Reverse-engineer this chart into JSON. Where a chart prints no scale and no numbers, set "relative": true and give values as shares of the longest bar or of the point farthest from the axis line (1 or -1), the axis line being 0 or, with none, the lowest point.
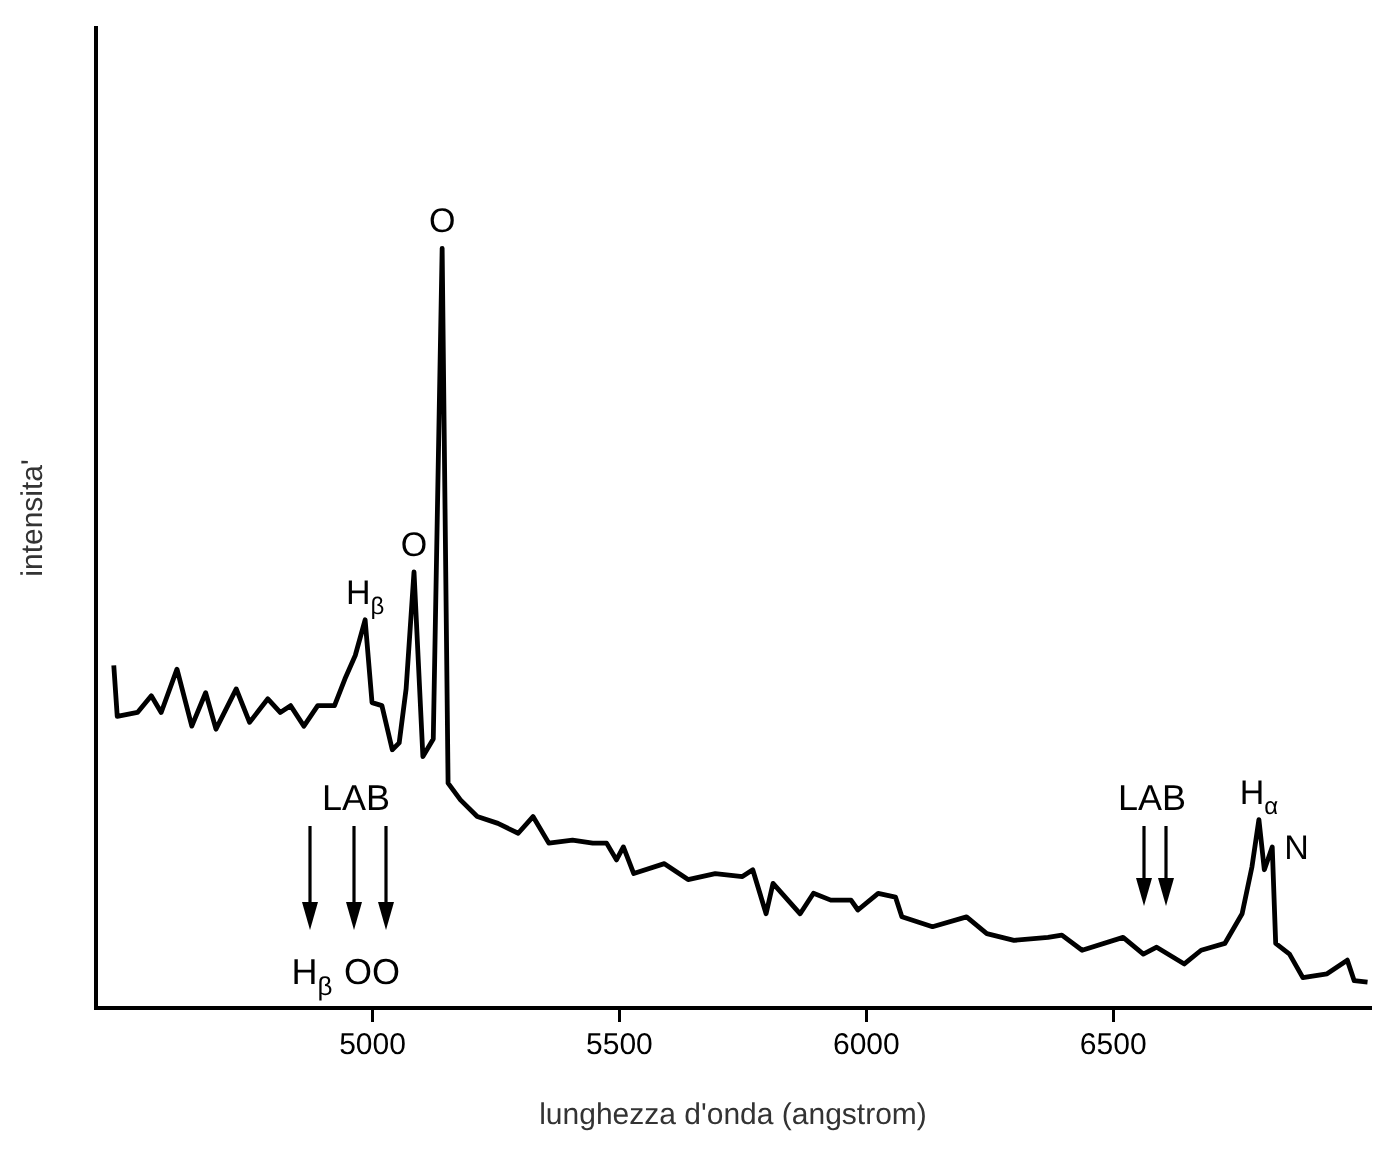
{
  "chart_data": {
    "type": "line",
    "relative": true,
    "xlabel": "lunghezza d'onda (angstrom)",
    "ylabel": "intensita'",
    "xlim": [
      4440,
      7020
    ],
    "xticks": [
      5000,
      5500,
      6000,
      6500
    ],
    "grid": false,
    "legend": false,
    "marker": "none",
    "line_style": "solid",
    "x": [
      4476,
      4483,
      4524,
      4552,
      4572,
      4604,
      4634,
      4662,
      4683,
      4724,
      4751,
      4788,
      4813,
      4834,
      4861,
      4889,
      4923,
      4944,
      4965,
      4985,
      4999,
      5019,
      5040,
      5054,
      5068,
      5084,
      5102,
      5123,
      5141,
      5153,
      5178,
      5212,
      5254,
      5295,
      5325,
      5357,
      5405,
      5446,
      5474,
      5494,
      5508,
      5529,
      5591,
      5639,
      5694,
      5749,
      5770,
      5797,
      5811,
      5866,
      5893,
      5928,
      5969,
      5983,
      6024,
      6059,
      6072,
      6134,
      6203,
      6244,
      6299,
      6368,
      6396,
      6437,
      6520,
      6561,
      6588,
      6644,
      6678,
      6726,
      6761,
      6781,
      6795,
      6806,
      6822,
      6829,
      6857,
      6884,
      6933,
      6974,
      6988,
      7015
    ],
    "series": [
      {
        "color": "#000000",
        "values": [
          0.451,
          0.384,
          0.389,
          0.411,
          0.389,
          0.446,
          0.371,
          0.415,
          0.367,
          0.42,
          0.376,
          0.407,
          0.389,
          0.398,
          0.371,
          0.398,
          0.398,
          0.433,
          0.464,
          0.511,
          0.402,
          0.398,
          0.34,
          0.349,
          0.42,
          0.574,
          0.331,
          0.354,
          1,
          0.296,
          0.274,
          0.252,
          0.243,
          0.23,
          0.252,
          0.217,
          0.221,
          0.217,
          0.217,
          0.195,
          0.212,
          0.177,
          0.19,
          0.169,
          0.177,
          0.173,
          0.182,
          0.124,
          0.164,
          0.124,
          0.151,
          0.142,
          0.142,
          0.129,
          0.151,
          0.146,
          0.12,
          0.107,
          0.12,
          0.098,
          0.089,
          0.093,
          0.096,
          0.076,
          0.093,
          0.071,
          0.08,
          0.058,
          0.076,
          0.085,
          0.124,
          0.186,
          0.248,
          0.182,
          0.212,
          0.085,
          0.071,
          0.04,
          0.045,
          0.063,
          0.036,
          0.034
        ]
      }
    ],
    "annotations": [
      {
        "text": "H$_{β}$",
        "x": 4985,
        "y": 0.511
      },
      {
        "text": "O",
        "x": 5084,
        "y": 0.574
      },
      {
        "text": "O",
        "x": 5141,
        "y": 1
      },
      {
        "text": "H$_{α}$",
        "x": 6795,
        "y": 0.248
      },
      {
        "text": "N",
        "x": 6822,
        "y": 0.212
      },
      "LAB",
      "H$_{β}$",
      "OO",
      "LAB"
    ]
  }
}
